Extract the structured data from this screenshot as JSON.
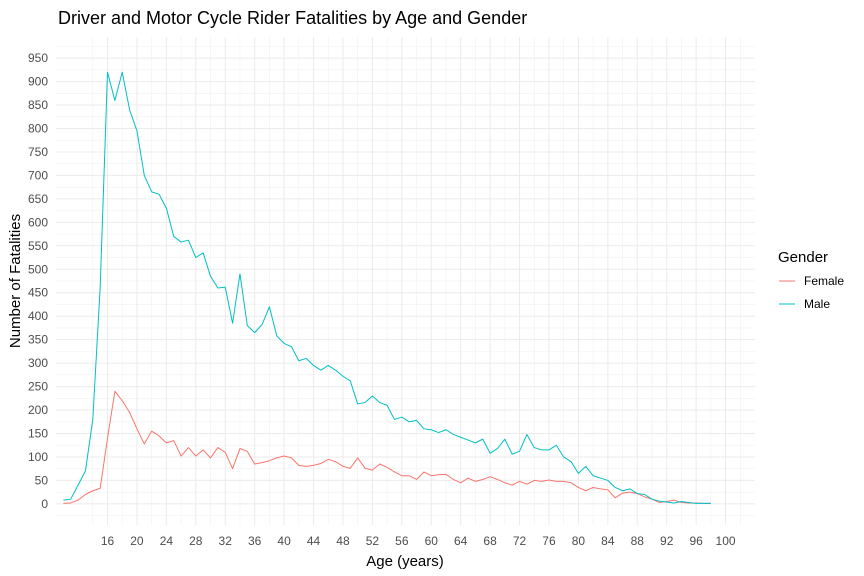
{
  "chart_data": {
    "type": "line",
    "title": "Driver and Motor Cycle Rider Fatalities by Age and Gender",
    "xlabel": "Age (years)",
    "ylabel": "Number of Fatalities",
    "xlim": [
      9,
      104
    ],
    "ylim": [
      -45,
      995
    ],
    "x_ticks": [
      16,
      20,
      24,
      28,
      32,
      36,
      40,
      44,
      48,
      52,
      56,
      60,
      64,
      68,
      72,
      76,
      80,
      84,
      88,
      92,
      96,
      100
    ],
    "y_ticks": [
      0,
      50,
      100,
      150,
      200,
      250,
      300,
      350,
      400,
      450,
      500,
      550,
      600,
      650,
      700,
      750,
      800,
      850,
      900,
      950
    ],
    "grid": true,
    "legend": {
      "title": "Gender",
      "placement": "right"
    },
    "x": [
      10,
      11,
      12,
      13,
      14,
      15,
      16,
      17,
      18,
      19,
      20,
      21,
      22,
      23,
      24,
      25,
      26,
      27,
      28,
      29,
      30,
      31,
      32,
      33,
      34,
      35,
      36,
      37,
      38,
      39,
      40,
      41,
      42,
      43,
      44,
      45,
      46,
      47,
      48,
      49,
      50,
      51,
      52,
      53,
      54,
      55,
      56,
      57,
      58,
      59,
      60,
      61,
      62,
      63,
      64,
      65,
      66,
      67,
      68,
      69,
      70,
      71,
      72,
      73,
      74,
      75,
      76,
      77,
      78,
      79,
      80,
      81,
      82,
      83,
      84,
      85,
      86,
      87,
      88,
      89,
      90,
      91,
      92,
      93,
      94,
      95,
      96,
      97,
      98
    ],
    "series": [
      {
        "name": "Female",
        "color": "#f8766d",
        "values": [
          1,
          2,
          8,
          20,
          28,
          33,
          140,
          240,
          220,
          195,
          160,
          128,
          155,
          145,
          130,
          135,
          102,
          120,
          102,
          115,
          98,
          120,
          110,
          75,
          118,
          112,
          85,
          88,
          92,
          98,
          102,
          98,
          82,
          80,
          82,
          86,
          95,
          90,
          80,
          76,
          98,
          76,
          72,
          85,
          78,
          68,
          60,
          60,
          52,
          68,
          60,
          62,
          63,
          52,
          45,
          55,
          48,
          52,
          58,
          52,
          45,
          40,
          48,
          42,
          50,
          48,
          51,
          48,
          48,
          45,
          35,
          28,
          35,
          32,
          30,
          13,
          23,
          25,
          22,
          15,
          10,
          3,
          5,
          8,
          3,
          2,
          2,
          1,
          1
        ]
      },
      {
        "name": "Male",
        "color": "#00bfc4",
        "values": [
          8,
          10,
          40,
          70,
          180,
          460,
          920,
          860,
          920,
          840,
          795,
          700,
          665,
          660,
          630,
          570,
          558,
          562,
          525,
          535,
          485,
          460,
          462,
          385,
          490,
          380,
          365,
          382,
          420,
          358,
          342,
          335,
          305,
          310,
          295,
          285,
          295,
          285,
          272,
          262,
          213,
          216,
          230,
          216,
          210,
          180,
          185,
          175,
          178,
          160,
          158,
          152,
          158,
          148,
          142,
          136,
          130,
          138,
          108,
          118,
          138,
          106,
          112,
          148,
          120,
          115,
          115,
          125,
          100,
          90,
          65,
          80,
          60,
          55,
          50,
          35,
          28,
          32,
          22,
          20,
          10,
          6,
          4,
          2,
          5,
          3,
          1,
          1,
          1
        ]
      }
    ]
  }
}
